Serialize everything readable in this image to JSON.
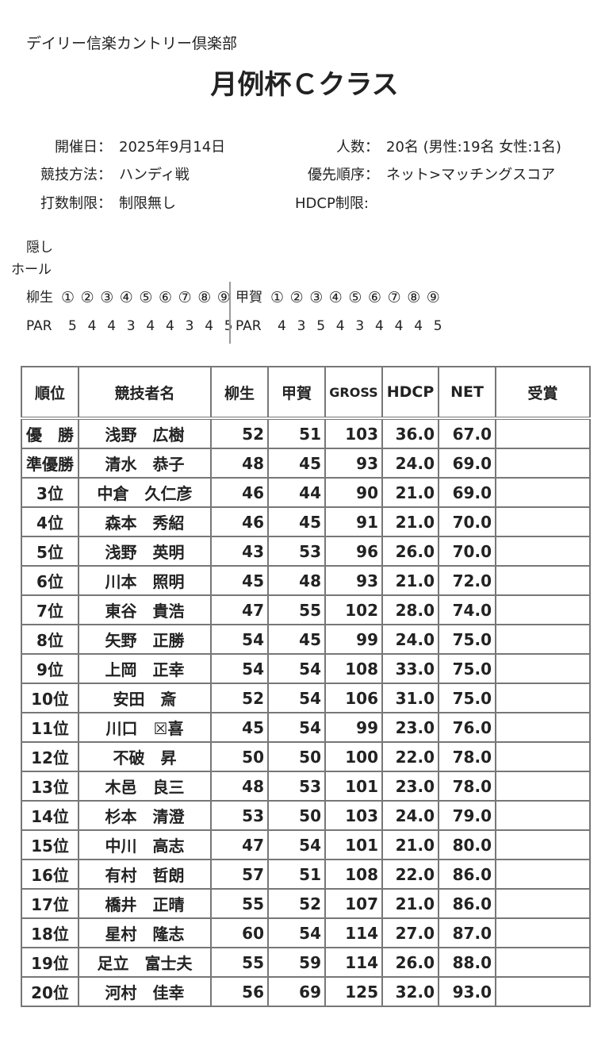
{
  "header": {
    "club": "デイリー信楽カントリー倶楽部",
    "title": "月例杯Ｃクラス"
  },
  "info": [
    {
      "label": "開催日：",
      "value": "2025年9月14日"
    },
    {
      "label": "人数：",
      "value": "20名 (男性:19名 女性:1名)"
    },
    {
      "label": "競技方法：",
      "value": "ハンディ戦"
    },
    {
      "label": "優先順序：",
      "value": "ネット>マッチングスコア"
    },
    {
      "label": "打数制限：",
      "value": "制限無し"
    },
    {
      "label": "HDCP制限:"
    }
  ],
  "hidden_holes": {
    "label": [
      "隠し",
      "ホール"
    ],
    "courses": [
      {
        "name": "柳生",
        "holes": [
          "①",
          "②",
          "③",
          "④",
          "⑤",
          "⑥",
          "⑦",
          "⑧",
          "⑨"
        ],
        "par_label": "PAR",
        "par": [
          5,
          4,
          4,
          3,
          4,
          4,
          3,
          4,
          5
        ]
      },
      {
        "name": "甲賀",
        "holes": [
          "①",
          "②",
          "③",
          "④",
          "⑤",
          "⑥",
          "⑦",
          "⑧",
          "⑨"
        ],
        "par_label": "PAR",
        "par": [
          4,
          3,
          5,
          4,
          3,
          4,
          4,
          4,
          5
        ]
      }
    ]
  },
  "table": {
    "columns": [
      "順位",
      "競技者名",
      "柳生",
      "甲賀",
      "GROSS",
      "HDCP",
      "NET",
      "受賞"
    ],
    "rows": [
      [
        "優　勝",
        "浅野　広樹",
        "52",
        "51",
        "103",
        "36.0",
        "67.0"
      ],
      [
        "準優勝",
        "清水　恭子",
        "48",
        "45",
        "93",
        "24.0",
        "69.0"
      ],
      [
        "3位",
        "中倉　久仁彦",
        "46",
        "44",
        "90",
        "21.0",
        "69.0"
      ],
      [
        "4位",
        "森本　秀紹",
        "46",
        "45",
        "91",
        "21.0",
        "70.0"
      ],
      [
        "5位",
        "浅野　英明",
        "43",
        "53",
        "96",
        "26.0",
        "70.0"
      ],
      [
        "6位",
        "川本　照明",
        "45",
        "48",
        "93",
        "21.0",
        "72.0"
      ],
      [
        "7位",
        "東谷　貴浩",
        "47",
        "55",
        "102",
        "28.0",
        "74.0"
      ],
      [
        "8位",
        "矢野　正勝",
        "54",
        "45",
        "99",
        "24.0",
        "75.0"
      ],
      [
        "9位",
        "上岡　正幸",
        "54",
        "54",
        "108",
        "33.0",
        "75.0"
      ],
      [
        "10位",
        "安田　斎",
        "52",
        "54",
        "106",
        "31.0",
        "75.0"
      ],
      [
        "11位",
        "川口　☒喜",
        "45",
        "54",
        "99",
        "23.0",
        "76.0"
      ],
      [
        "12位",
        "不破　昇",
        "50",
        "50",
        "100",
        "22.0",
        "78.0"
      ],
      [
        "13位",
        "木邑　良三",
        "48",
        "53",
        "101",
        "23.0",
        "78.0"
      ],
      [
        "14位",
        "杉本　清澄",
        "53",
        "50",
        "103",
        "24.0",
        "79.0"
      ],
      [
        "15位",
        "中川　高志",
        "47",
        "54",
        "101",
        "21.0",
        "80.0"
      ],
      [
        "16位",
        "有村　哲朗",
        "57",
        "51",
        "108",
        "22.0",
        "86.0"
      ],
      [
        "17位",
        "橋井　正晴",
        "55",
        "52",
        "107",
        "21.0",
        "86.0"
      ],
      [
        "18位",
        "星村　隆志",
        "60",
        "54",
        "114",
        "27.0",
        "87.0"
      ],
      [
        "19位",
        "足立　富士夫",
        "55",
        "59",
        "114",
        "26.0",
        "88.0"
      ],
      [
        "20位",
        "河村　佳幸",
        "56",
        "69",
        "125",
        "32.0",
        "93.0"
      ]
    ]
  }
}
